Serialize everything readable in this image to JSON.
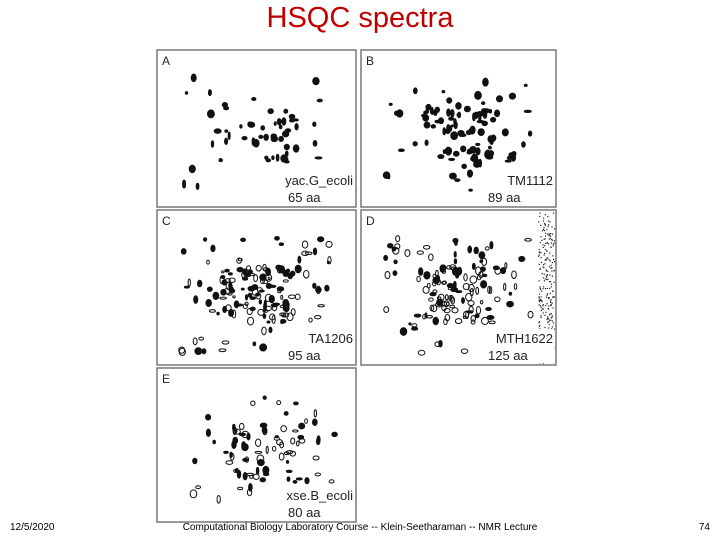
{
  "header": {
    "title": "HSQC spectra"
  },
  "panels": [
    {
      "letter": "A",
      "name": "yac.G_ecoli",
      "length": "65 aa"
    },
    {
      "letter": "B",
      "name": "TM1112",
      "length": "89 aa"
    },
    {
      "letter": "C",
      "name": "TA1206",
      "length": "95 aa"
    },
    {
      "letter": "D",
      "name": "MTH1622",
      "length": "125 aa"
    },
    {
      "letter": "E",
      "name": "xse.B_ecoli",
      "length": "80 aa"
    }
  ],
  "footer": {
    "date": "12/5/2020",
    "text": "Computational Biology Laboratory Course -- Klein-Seetharaman -- NMR Lecture",
    "page": "74"
  }
}
